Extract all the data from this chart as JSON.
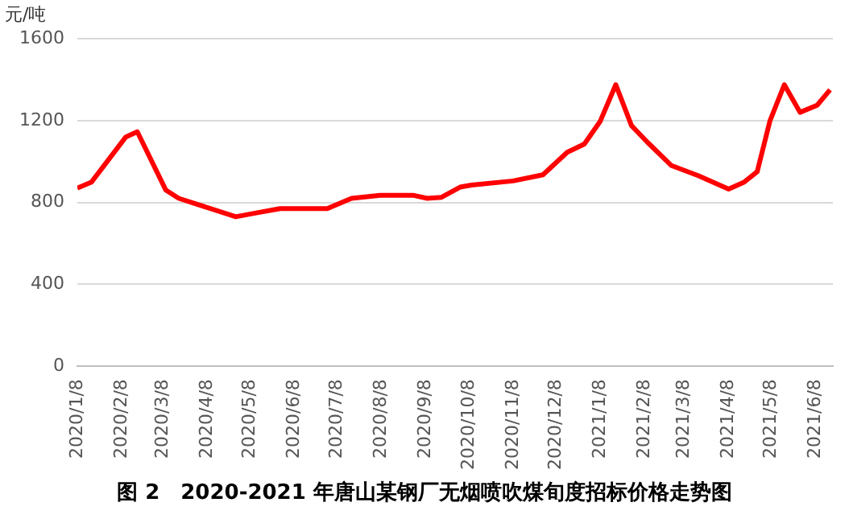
{
  "chart_data": {
    "type": "line",
    "title": "图 2　2020-2021 年唐山某钢厂无烟喷吹煤旬度招标价格走势图",
    "ylabel": "元/吨",
    "x": [
      "2020-01-08",
      "2020-01-18",
      "2020-02-11",
      "2020-02-19",
      "2020-03-10",
      "2020-03-19",
      "2020-04-28",
      "2020-05-13",
      "2020-05-29",
      "2020-07-01",
      "2020-07-18",
      "2020-08-07",
      "2020-08-30",
      "2020-09-09",
      "2020-09-19",
      "2020-10-02",
      "2020-10-10",
      "2020-11-08",
      "2020-11-29",
      "2020-12-16",
      "2020-12-28",
      "2021-01-08",
      "2021-01-19",
      "2021-01-30",
      "2021-02-10",
      "2021-02-27",
      "2021-03-18",
      "2021-04-08",
      "2021-04-19",
      "2021-04-28",
      "2021-05-07",
      "2021-05-17",
      "2021-05-28",
      "2021-06-09",
      "2021-06-18"
    ],
    "series": [
      {
        "color": "#ff0000",
        "values": [
          870,
          900,
          1120,
          1145,
          860,
          820,
          730,
          750,
          770,
          770,
          820,
          835,
          835,
          820,
          825,
          875,
          885,
          905,
          935,
          1045,
          1085,
          1195,
          1375,
          1175,
          1095,
          980,
          930,
          865,
          900,
          950,
          1200,
          1375,
          1240,
          1275,
          1350
        ]
      }
    ],
    "xlim": [
      "2020-01-08",
      "2021-06-20"
    ],
    "xticks": [
      {
        "value": "2020-01-08",
        "label": "2020/1/8"
      },
      {
        "value": "2020-02-08",
        "label": "2020/2/8"
      },
      {
        "value": "2020-03-08",
        "label": "2020/3/8"
      },
      {
        "value": "2020-04-08",
        "label": "2020/4/8"
      },
      {
        "value": "2020-05-08",
        "label": "2020/5/8"
      },
      {
        "value": "2020-06-08",
        "label": "2020/6/8"
      },
      {
        "value": "2020-07-08",
        "label": "2020/7/8"
      },
      {
        "value": "2020-08-08",
        "label": "2020/8/8"
      },
      {
        "value": "2020-09-08",
        "label": "2020/9/8"
      },
      {
        "value": "2020-10-08",
        "label": "2020/10/8"
      },
      {
        "value": "2020-11-08",
        "label": "2020/11/8"
      },
      {
        "value": "2020-12-08",
        "label": "2020/12/8"
      },
      {
        "value": "2021-01-08",
        "label": "2021/1/8"
      },
      {
        "value": "2021-02-08",
        "label": "2021/2/8"
      },
      {
        "value": "2021-03-08",
        "label": "2021/3/8"
      },
      {
        "value": "2021-04-08",
        "label": "2021/4/8"
      },
      {
        "value": "2021-05-08",
        "label": "2021/5/8"
      },
      {
        "value": "2021-06-08",
        "label": "2021/6/8"
      }
    ],
    "ylim": [
      0,
      1600
    ],
    "yticks": [
      0,
      400,
      800,
      1200,
      1600
    ],
    "grid": "y",
    "legend": false,
    "marker": "none",
    "line_style": "solid"
  }
}
